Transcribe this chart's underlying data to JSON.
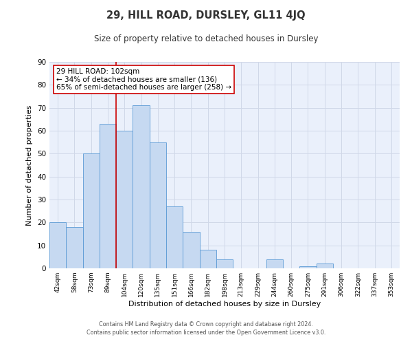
{
  "title": "29, HILL ROAD, DURSLEY, GL11 4JQ",
  "subtitle": "Size of property relative to detached houses in Dursley",
  "xlabel": "Distribution of detached houses by size in Dursley",
  "ylabel": "Number of detached properties",
  "bar_labels": [
    "42sqm",
    "58sqm",
    "73sqm",
    "89sqm",
    "104sqm",
    "120sqm",
    "135sqm",
    "151sqm",
    "166sqm",
    "182sqm",
    "198sqm",
    "213sqm",
    "229sqm",
    "244sqm",
    "260sqm",
    "275sqm",
    "291sqm",
    "306sqm",
    "322sqm",
    "337sqm",
    "353sqm"
  ],
  "bar_values": [
    20,
    18,
    50,
    63,
    60,
    71,
    55,
    27,
    16,
    8,
    4,
    0,
    0,
    4,
    0,
    1,
    2,
    0,
    0,
    0,
    0
  ],
  "bar_color": "#c6d9f1",
  "bar_edge_color": "#5b9bd5",
  "red_line_index": 4,
  "red_line_color": "#cc0000",
  "ylim": [
    0,
    90
  ],
  "yticks": [
    0,
    10,
    20,
    30,
    40,
    50,
    60,
    70,
    80,
    90
  ],
  "annotation_title": "29 HILL ROAD: 102sqm",
  "annotation_line1": "← 34% of detached houses are smaller (136)",
  "annotation_line2": "65% of semi-detached houses are larger (258) →",
  "annotation_box_color": "#cc0000",
  "grid_color": "#d0d8e8",
  "footer_line1": "Contains HM Land Registry data © Crown copyright and database right 2024.",
  "footer_line2": "Contains public sector information licensed under the Open Government Licence v3.0.",
  "background_color": "#eaf0fb"
}
